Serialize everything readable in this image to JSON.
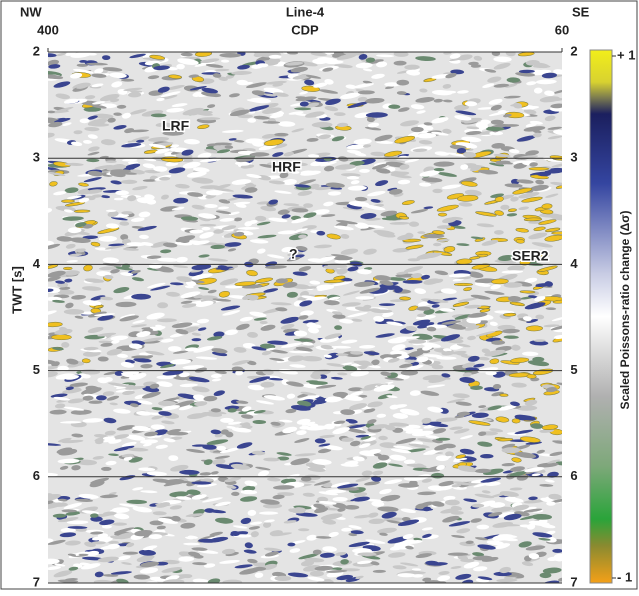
{
  "chart_data": {
    "type": "seismic",
    "title": "Line-4",
    "x_label": "CDP",
    "y_label": "TWT [s]",
    "left_label": "NW",
    "right_label": "SE",
    "xlim": [
      400,
      60
    ],
    "xticks": [
      400,
      60
    ],
    "ylim": [
      2,
      7
    ],
    "yticks": [
      2,
      3,
      4,
      5,
      6,
      7
    ],
    "grid": true,
    "colorbar": {
      "label": "Scaled Poissons-ratio change (Δσ)",
      "lim": [
        -1,
        1
      ],
      "ticks": [
        {
          "value": 1,
          "label": "+ 1"
        },
        {
          "value": -1,
          "label": "- 1"
        }
      ]
    },
    "annotations": [
      "LRF",
      "HRF",
      "?",
      "SER2"
    ]
  }
}
